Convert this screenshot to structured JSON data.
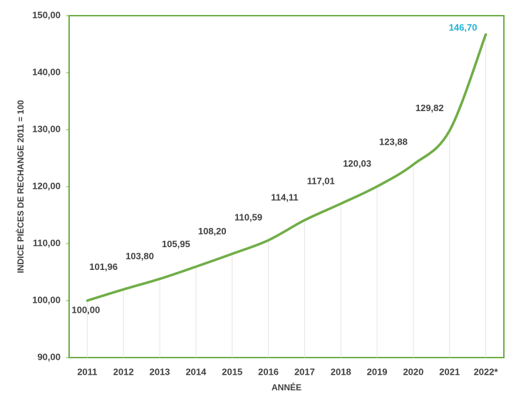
{
  "chart_data": {
    "type": "line",
    "y_label": "INDICE PIÈCES DE RECHANGE 2011 = 100",
    "x_label": "ANNÉE",
    "categories": [
      "2011",
      "2012",
      "2013",
      "2014",
      "2015",
      "2016",
      "2017",
      "2018",
      "2019",
      "2020",
      "2021",
      "2022*"
    ],
    "series": [
      {
        "name": null,
        "color": "#70ad47",
        "highlight_color": "#1fb3d6",
        "values": [
          100.0,
          101.96,
          103.8,
          105.95,
          108.2,
          110.59,
          114.11,
          117.01,
          120.03,
          123.88,
          129.82,
          146.7
        ],
        "value_labels": [
          "100,00",
          "101,96",
          "103,80",
          "105,95",
          "108,20",
          "110,59",
          "114,11",
          "117,01",
          "120,03",
          "123,88",
          "129,82",
          "146,70"
        ]
      }
    ],
    "ylim": [
      90,
      150
    ],
    "yticks": [
      {
        "value": 90,
        "label": "90,00"
      },
      {
        "value": 100,
        "label": "100,00"
      },
      {
        "value": 110,
        "label": "110,00"
      },
      {
        "value": 120,
        "label": "120,00"
      },
      {
        "value": 130,
        "label": "130,00"
      },
      {
        "value": 140,
        "label": "140,00"
      },
      {
        "value": 150,
        "label": "150,00"
      }
    ],
    "grid": false
  }
}
